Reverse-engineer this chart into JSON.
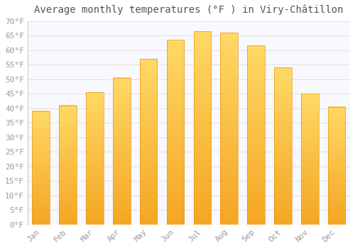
{
  "title": "Average monthly temperatures (°F ) in Viry-Châtillon",
  "months": [
    "Jan",
    "Feb",
    "Mar",
    "Apr",
    "May",
    "Jun",
    "Jul",
    "Aug",
    "Sep",
    "Oct",
    "Nov",
    "Dec"
  ],
  "values": [
    39,
    41,
    45.5,
    50.5,
    57,
    63.5,
    66.5,
    66,
    61.5,
    54,
    45,
    40.5
  ],
  "bar_color_top": "#FFD966",
  "bar_color_bottom": "#F5A623",
  "background_color": "#FFFFFF",
  "plot_bg_color": "#F8F8FF",
  "grid_color": "#DDDDDD",
  "ylim": [
    0,
    70
  ],
  "ytick_step": 5,
  "title_fontsize": 10,
  "tick_fontsize": 8,
  "bar_width": 0.65,
  "tick_color": "#999999",
  "title_color": "#555555"
}
